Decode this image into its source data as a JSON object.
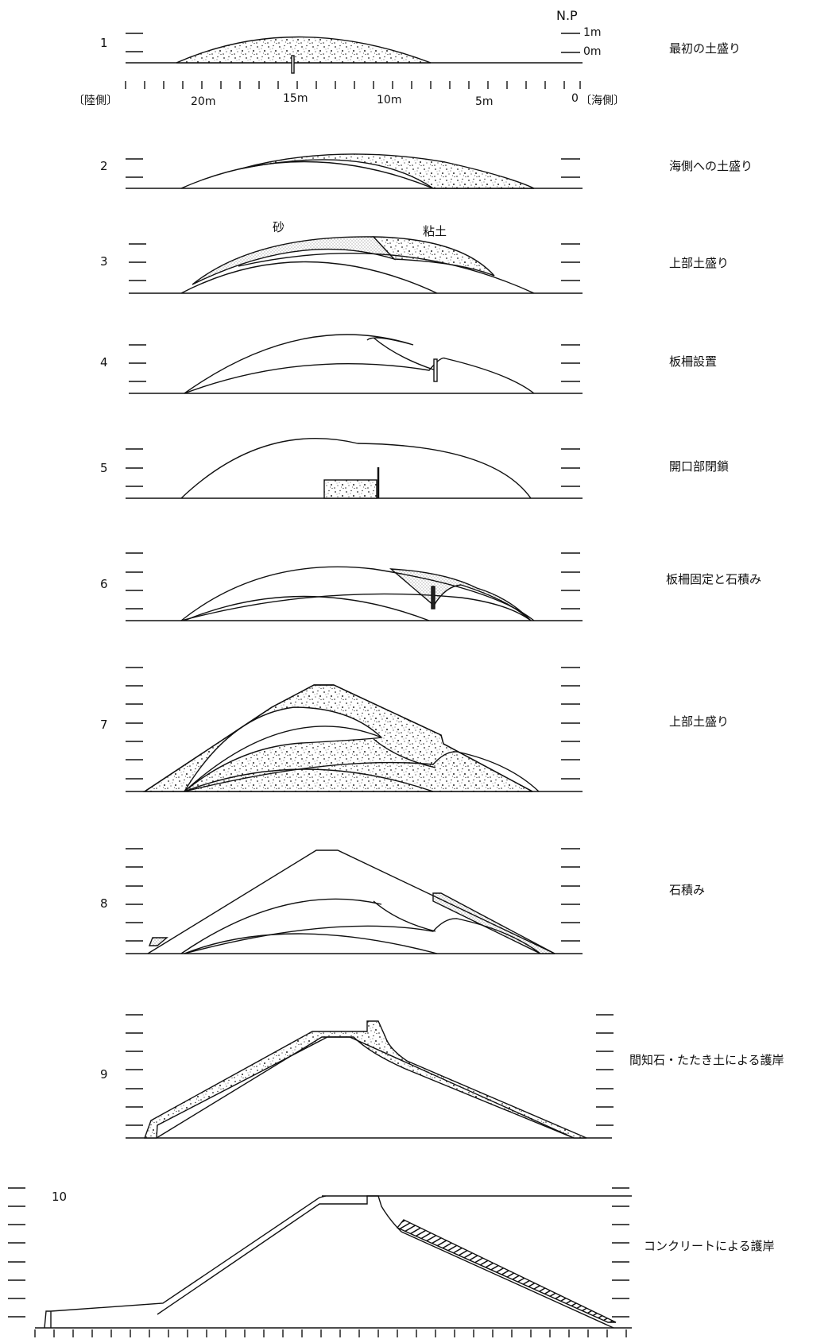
{
  "np": {
    "title": "N.P",
    "one": "1m",
    "zero": "0m"
  },
  "axis": {
    "land": "〔陸側〕",
    "sea": "〔海側〕",
    "ticks": [
      "20m",
      "15m",
      "10m",
      "5m",
      "0"
    ]
  },
  "materials": {
    "sand": "砂",
    "clay": "粘土"
  },
  "steps": [
    {
      "num": "1",
      "label": "最初の土盛り"
    },
    {
      "num": "2",
      "label": "海側への土盛り"
    },
    {
      "num": "3",
      "label": "上部土盛り"
    },
    {
      "num": "4",
      "label": "板柵設置"
    },
    {
      "num": "5",
      "label": "開口部閉鎖"
    },
    {
      "num": "6",
      "label": "板柵固定と石積み"
    },
    {
      "num": "7",
      "label": "上部土盛り"
    },
    {
      "num": "8",
      "label": "石積み"
    },
    {
      "num": "9",
      "label": "間知石・たたき土による護岸"
    },
    {
      "num": "10",
      "label": "コンクリートによる護岸"
    }
  ]
}
